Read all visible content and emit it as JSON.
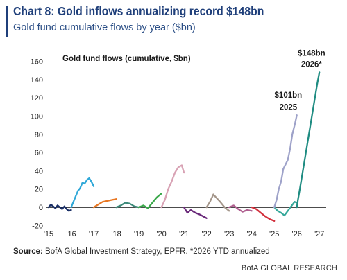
{
  "title": "Chart 8: Gold inflows annualizing record $148bn",
  "subtitle": "Gold fund cumulative flows by year ($bn)",
  "source_label": "Source:",
  "source_text": "BofA Global Investment Strategy, EPFR. *2026 YTD annualized",
  "brand": "BofA GLOBAL RESEARCH",
  "chart_data": {
    "type": "line",
    "title": "Gold fund flows (cumulative, $bn)",
    "xlabel": "",
    "ylabel": "",
    "xlim": [
      2015,
      2027.3
    ],
    "ylim": [
      -22,
      165
    ],
    "x_ticks": [
      "'15",
      "'16",
      "'17",
      "'18",
      "'19",
      "'20",
      "'21",
      "'22",
      "'23",
      "'24",
      "'25",
      "'26",
      "'27"
    ],
    "y_ticks": [
      -20,
      0,
      20,
      40,
      60,
      80,
      100,
      120,
      140,
      160
    ],
    "grid": false,
    "zero_line": true,
    "annotations": [
      {
        "text": "$101bn",
        "x": 2025.62,
        "y": 120
      },
      {
        "text": "2025",
        "x": 2025.62,
        "y": 107
      },
      {
        "text": "$148bn",
        "x": 2026.65,
        "y": 166
      },
      {
        "text": "2026*",
        "x": 2026.65,
        "y": 154
      }
    ],
    "series": [
      {
        "color": "#1a2f66",
        "x": [
          2015.0,
          2015.1,
          2015.2,
          2015.3,
          2015.4,
          2015.5,
          2015.6,
          2015.7,
          2015.8,
          2015.9,
          2016.0
        ],
        "y": [
          0,
          3,
          1,
          -1,
          2,
          0,
          -2,
          1,
          -2,
          -4,
          -3
        ]
      },
      {
        "color": "#2fa8d8",
        "x": [
          2016.0,
          2016.1,
          2016.2,
          2016.3,
          2016.4,
          2016.5,
          2016.6,
          2016.7,
          2016.8,
          2016.9,
          2017.0
        ],
        "y": [
          0,
          6,
          12,
          18,
          21,
          27,
          26,
          30,
          32,
          28,
          23
        ]
      },
      {
        "color": "#e87722",
        "x": [
          2017.0,
          2017.2,
          2017.4,
          2017.6,
          2017.8,
          2018.0
        ],
        "y": [
          0,
          3,
          6,
          7,
          8,
          9
        ]
      },
      {
        "color": "#3d8a7a",
        "x": [
          2018.0,
          2018.2,
          2018.4,
          2018.6,
          2018.8,
          2019.0
        ],
        "y": [
          0,
          2,
          5,
          4,
          1,
          0
        ]
      },
      {
        "color": "#3aa84a",
        "x": [
          2019.0,
          2019.2,
          2019.4,
          2019.6,
          2019.7,
          2019.8,
          2020.0
        ],
        "y": [
          0,
          2,
          -1,
          5,
          8,
          11,
          15
        ]
      },
      {
        "color": "#d8a2b4",
        "x": [
          2020.0,
          2020.15,
          2020.3,
          2020.45,
          2020.6,
          2020.75,
          2020.9,
          2021.0
        ],
        "y": [
          0,
          8,
          20,
          28,
          38,
          44,
          46,
          38
        ]
      },
      {
        "color": "#6a2a7a",
        "x": [
          2021.0,
          2021.15,
          2021.3,
          2021.5,
          2021.7,
          2021.85,
          2022.0
        ],
        "y": [
          0,
          -6,
          -3,
          -6,
          -8,
          -10,
          -12
        ]
      },
      {
        "color": "#a39589",
        "x": [
          2022.0,
          2022.15,
          2022.3,
          2022.45,
          2022.6,
          2022.8,
          2023.0
        ],
        "y": [
          0,
          6,
          14,
          10,
          6,
          0,
          -4
        ]
      },
      {
        "color": "#b06090",
        "x": [
          2023.0,
          2023.2,
          2023.4,
          2023.6,
          2023.8,
          2024.0
        ],
        "y": [
          0,
          2,
          -2,
          -5,
          -3,
          -4
        ]
      },
      {
        "color": "#d2303c",
        "x": [
          2024.0,
          2024.2,
          2024.4,
          2024.6,
          2024.8,
          2025.0
        ],
        "y": [
          0,
          -2,
          -6,
          -10,
          -13,
          -15
        ]
      },
      {
        "color": "#36a89a",
        "x": [
          2025.0,
          2025.15,
          2025.3,
          2025.45,
          2025.6,
          2025.75,
          2025.9,
          2026.0
        ],
        "y": [
          0,
          -4,
          -6,
          -9,
          -4,
          1,
          6,
          5
        ]
      },
      {
        "color": "#9ea2c9",
        "x": [
          2025.0,
          2025.1,
          2025.2,
          2025.3,
          2025.4,
          2025.5,
          2025.6,
          2025.7,
          2025.8,
          2025.9,
          2026.0
        ],
        "y": [
          0,
          8,
          20,
          28,
          42,
          47,
          52,
          64,
          80,
          90,
          101
        ]
      },
      {
        "color": "#1f8c82",
        "x": [
          2026.0,
          2026.05,
          2026.12,
          2026.3,
          2026.5,
          2026.7,
          2026.9,
          2027.0
        ],
        "y": [
          0,
          8,
          18,
          45,
          75,
          105,
          135,
          148
        ]
      }
    ]
  }
}
